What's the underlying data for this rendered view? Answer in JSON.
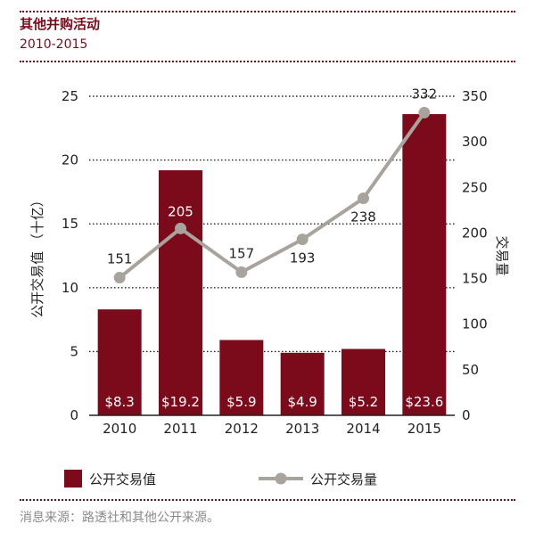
{
  "header": {
    "title": "其他并购活动",
    "subtitle": "2010-2015"
  },
  "source": "消息来源：路透社和其他公开来源。",
  "colors": {
    "bar": "#7b0b1b",
    "line": "#a8a39d",
    "accent": "#7a0c1c"
  },
  "chart_data": {
    "type": "bar",
    "categories": [
      "2010",
      "2011",
      "2012",
      "2013",
      "2014",
      "2015"
    ],
    "series": [
      {
        "name": "公开交易值",
        "type": "bar",
        "axis": "left",
        "values": [
          8.3,
          19.2,
          5.9,
          4.9,
          5.2,
          23.6
        ],
        "labels": [
          "$8.3",
          "$19.2",
          "$5.9",
          "$4.9",
          "$5.2",
          "$23.6"
        ]
      },
      {
        "name": "公开交易量",
        "type": "line",
        "axis": "right",
        "values": [
          151,
          205,
          157,
          193,
          238,
          332
        ],
        "labels": [
          "151",
          "205",
          "157",
          "193",
          "238",
          "332"
        ]
      }
    ],
    "ylabel_left": "公开交易值 （十亿）",
    "ylabel_right": "交易量",
    "ylim_left": [
      0,
      25
    ],
    "ylim_right": [
      0,
      350
    ],
    "yticks_left": [
      "0",
      "5",
      "10",
      "15",
      "20",
      "25"
    ],
    "yticks_right": [
      "0",
      "50",
      "100",
      "150",
      "200",
      "250",
      "300",
      "350"
    ],
    "grid": true,
    "legend_position": "bottom"
  }
}
